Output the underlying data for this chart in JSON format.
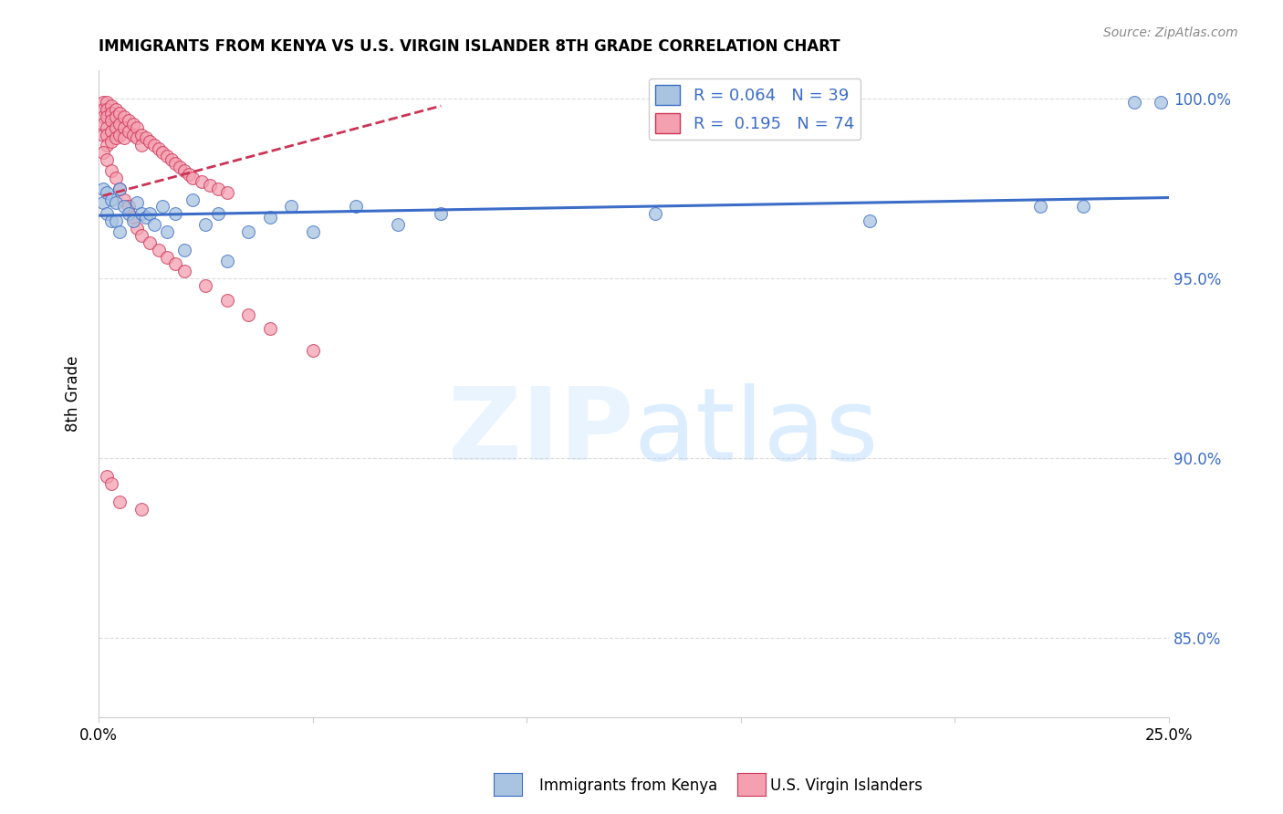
{
  "title": "IMMIGRANTS FROM KENYA VS U.S. VIRGIN ISLANDER 8TH GRADE CORRELATION CHART",
  "source": "Source: ZipAtlas.com",
  "ylabel": "8th Grade",
  "xlim": [
    0.0,
    0.25
  ],
  "ylim": [
    0.828,
    1.008
  ],
  "yticks": [
    0.85,
    0.9,
    0.95,
    1.0
  ],
  "ytick_labels": [
    "85.0%",
    "90.0%",
    "95.0%",
    "100.0%"
  ],
  "xticks": [
    0.0,
    0.05,
    0.1,
    0.15,
    0.2,
    0.25
  ],
  "xtick_labels": [
    "0.0%",
    "",
    "",
    "",
    "",
    "25.0%"
  ],
  "legend_r1": "R = 0.064",
  "legend_n1": "N = 39",
  "legend_r2": "R =  0.195",
  "legend_n2": "N = 74",
  "blue_color": "#A8C4E0",
  "pink_color": "#F4A0B0",
  "blue_line_color": "#3B6CC7",
  "pink_line_color": "#CC3355",
  "kenya_x": [
    0.001,
    0.001,
    0.002,
    0.002,
    0.003,
    0.003,
    0.004,
    0.004,
    0.005,
    0.005,
    0.006,
    0.007,
    0.008,
    0.009,
    0.01,
    0.011,
    0.012,
    0.013,
    0.015,
    0.016,
    0.018,
    0.02,
    0.022,
    0.025,
    0.028,
    0.03,
    0.035,
    0.04,
    0.045,
    0.05,
    0.06,
    0.07,
    0.08,
    0.13,
    0.18,
    0.22,
    0.23,
    0.242,
    0.248
  ],
  "kenya_y": [
    0.975,
    0.971,
    0.974,
    0.968,
    0.972,
    0.966,
    0.971,
    0.966,
    0.975,
    0.963,
    0.97,
    0.968,
    0.966,
    0.971,
    0.968,
    0.967,
    0.968,
    0.965,
    0.97,
    0.963,
    0.968,
    0.958,
    0.972,
    0.965,
    0.968,
    0.955,
    0.963,
    0.967,
    0.97,
    0.963,
    0.97,
    0.965,
    0.968,
    0.968,
    0.966,
    0.97,
    0.97,
    0.999,
    0.999
  ],
  "usvi_x": [
    0.001,
    0.001,
    0.001,
    0.001,
    0.001,
    0.002,
    0.002,
    0.002,
    0.002,
    0.002,
    0.002,
    0.003,
    0.003,
    0.003,
    0.003,
    0.003,
    0.004,
    0.004,
    0.004,
    0.004,
    0.005,
    0.005,
    0.005,
    0.006,
    0.006,
    0.006,
    0.007,
    0.007,
    0.008,
    0.008,
    0.009,
    0.009,
    0.01,
    0.01,
    0.011,
    0.012,
    0.013,
    0.014,
    0.015,
    0.016,
    0.017,
    0.018,
    0.019,
    0.02,
    0.021,
    0.022,
    0.024,
    0.026,
    0.028,
    0.03,
    0.001,
    0.002,
    0.003,
    0.004,
    0.005,
    0.006,
    0.007,
    0.008,
    0.009,
    0.01,
    0.012,
    0.014,
    0.016,
    0.018,
    0.02,
    0.025,
    0.03,
    0.035,
    0.04,
    0.05,
    0.002,
    0.003,
    0.005,
    0.01
  ],
  "usvi_y": [
    0.999,
    0.997,
    0.995,
    0.993,
    0.99,
    0.999,
    0.997,
    0.995,
    0.992,
    0.99,
    0.987,
    0.998,
    0.996,
    0.994,
    0.991,
    0.988,
    0.997,
    0.995,
    0.992,
    0.989,
    0.996,
    0.993,
    0.99,
    0.995,
    0.992,
    0.989,
    0.994,
    0.991,
    0.993,
    0.99,
    0.992,
    0.989,
    0.99,
    0.987,
    0.989,
    0.988,
    0.987,
    0.986,
    0.985,
    0.984,
    0.983,
    0.982,
    0.981,
    0.98,
    0.979,
    0.978,
    0.977,
    0.976,
    0.975,
    0.974,
    0.985,
    0.983,
    0.98,
    0.978,
    0.975,
    0.972,
    0.97,
    0.967,
    0.964,
    0.962,
    0.96,
    0.958,
    0.956,
    0.954,
    0.952,
    0.948,
    0.944,
    0.94,
    0.936,
    0.93,
    0.895,
    0.893,
    0.888,
    0.886
  ],
  "blue_trendline_x": [
    0.0,
    0.25
  ],
  "blue_trendline_y": [
    0.9675,
    0.9725
  ],
  "pink_trendline_x": [
    0.001,
    0.08
  ],
  "pink_trendline_y": [
    0.973,
    0.998
  ]
}
